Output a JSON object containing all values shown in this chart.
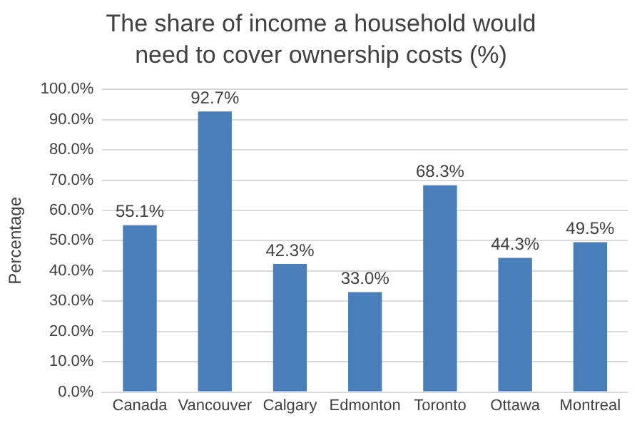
{
  "chart_data": {
    "type": "bar",
    "title": "The share of income a household would need to cover ownership costs (%)",
    "ylabel": "Percentage",
    "categories": [
      "Canada",
      "Vancouver",
      "Calgary",
      "Edmonton",
      "Toronto",
      "Ottawa",
      "Montreal"
    ],
    "values": [
      55.1,
      92.7,
      42.3,
      33.0,
      68.3,
      44.3,
      49.5
    ],
    "value_labels": [
      "55.1%",
      "92.7%",
      "42.3%",
      "33.0%",
      "68.3%",
      "44.3%",
      "49.5%"
    ],
    "color": "#4a7ebb",
    "ylim": [
      0,
      100
    ],
    "yticks": [
      {
        "value": 0,
        "label": "0.0%"
      },
      {
        "value": 10,
        "label": "10.0%"
      },
      {
        "value": 20,
        "label": "20.0%"
      },
      {
        "value": 30,
        "label": "30.0%"
      },
      {
        "value": 40,
        "label": "40.0%"
      },
      {
        "value": 50,
        "label": "50.0%"
      },
      {
        "value": 60,
        "label": "60.0%"
      },
      {
        "value": 70,
        "label": "70.0%"
      },
      {
        "value": 80,
        "label": "80.0%"
      },
      {
        "value": 90,
        "label": "90.0%"
      },
      {
        "value": 100,
        "label": "100.0%"
      }
    ],
    "grid": "y"
  }
}
